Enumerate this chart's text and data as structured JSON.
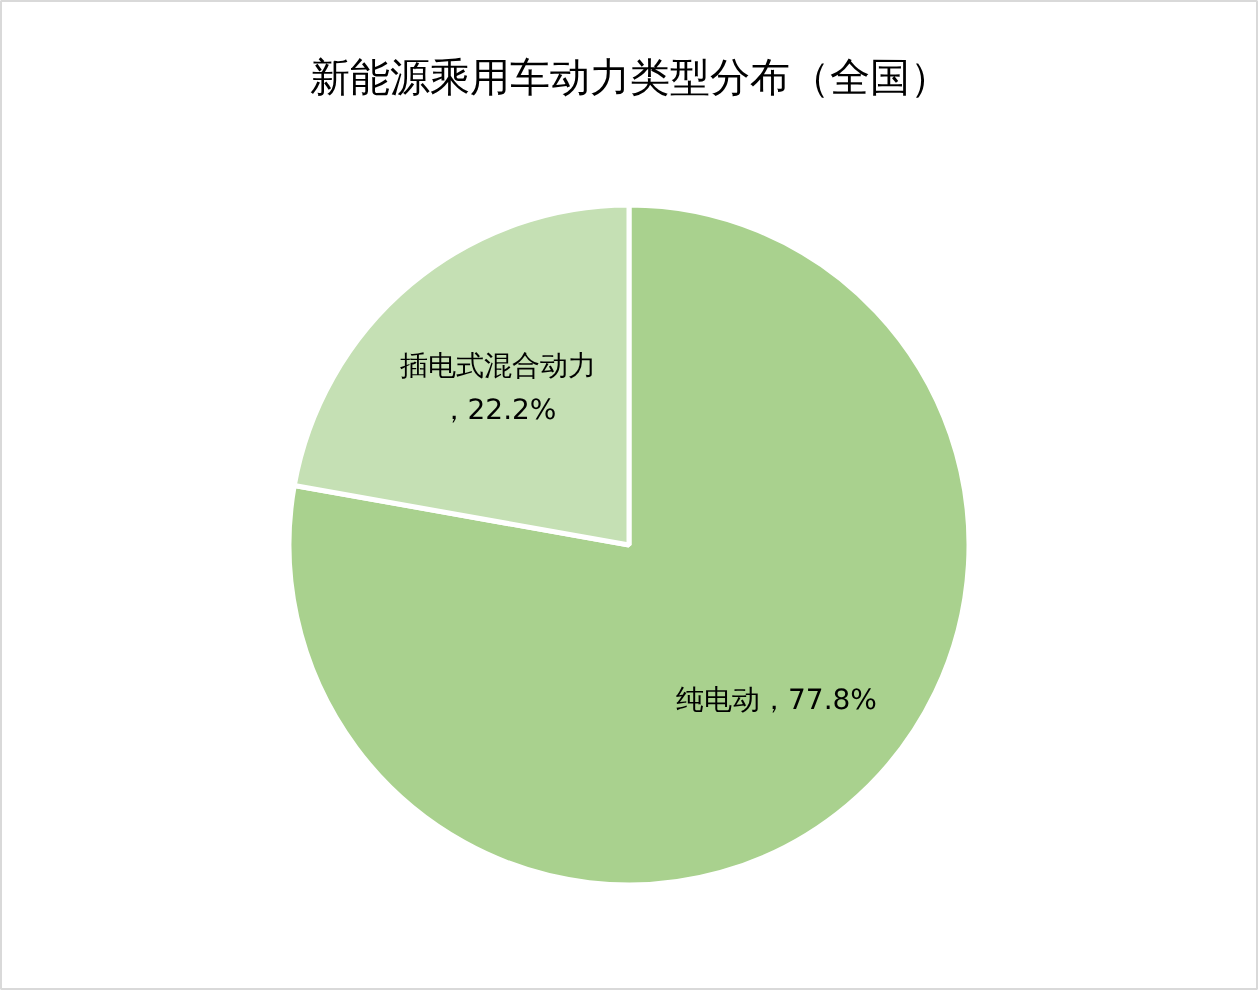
{
  "chart_data": {
    "type": "pie",
    "title": "新能源乘用车动力类型分布（全国）",
    "categories": [
      "纯电动",
      "插电式混合动力"
    ],
    "values": [
      77.8,
      22.2
    ],
    "colors": [
      "#a9d18e",
      "#c5e0b4"
    ],
    "value_labels": [
      "，77.8%",
      "，22.2%"
    ],
    "legend": false
  }
}
